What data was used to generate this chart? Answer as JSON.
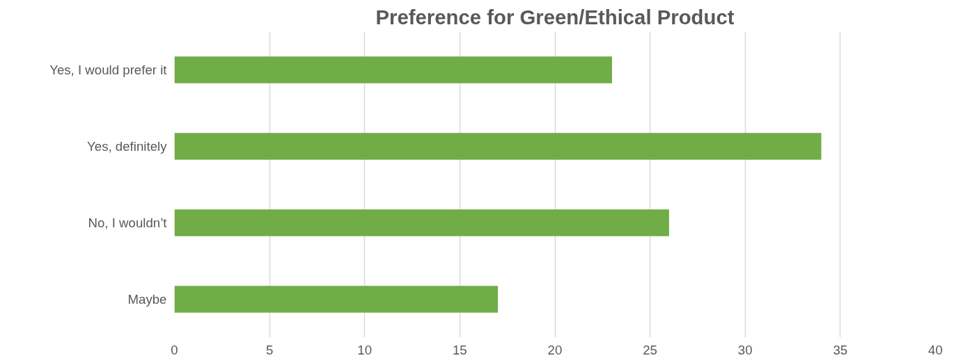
{
  "chart_data": {
    "type": "bar",
    "orientation": "horizontal",
    "title": "Preference for Green/Ethical Product",
    "categories": [
      "Yes, I would prefer it",
      "Yes, definitely",
      "No, I wouldn’t",
      "Maybe"
    ],
    "values": [
      23,
      34,
      26,
      17
    ],
    "color": "#70ad47",
    "xlim": [
      0,
      40
    ],
    "xticks": [
      0,
      5,
      10,
      15,
      20,
      25,
      30,
      35,
      40
    ],
    "grid": "x"
  }
}
